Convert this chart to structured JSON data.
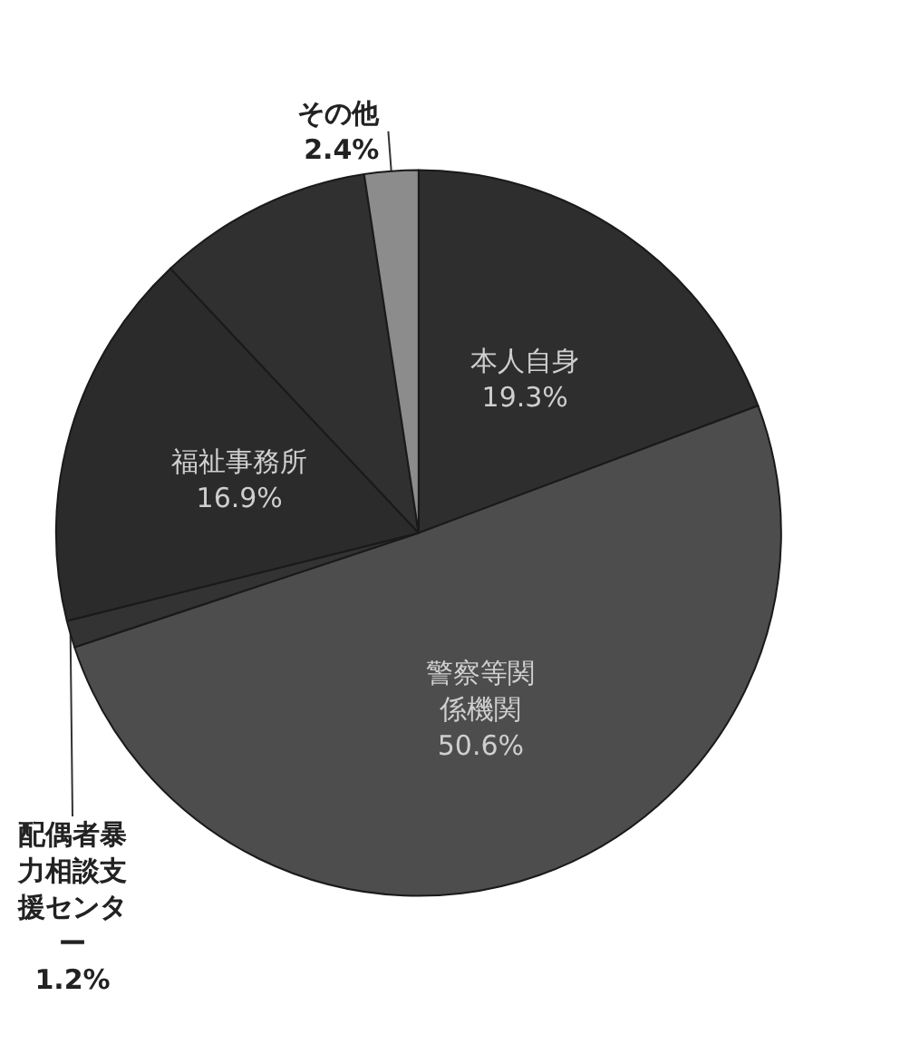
{
  "chart_data": {
    "type": "pie",
    "categories": [
      "本人自身",
      "警察等関係機関",
      "配偶者暴力相談支援センター",
      "福祉事務所",
      null,
      "その他"
    ],
    "values": [
      19.3,
      50.6,
      1.2,
      16.9,
      9.6,
      2.4
    ],
    "colors": [
      "#2e2e2e",
      "#4d4d4d",
      "#333333",
      "#2b2b2b",
      "#303030",
      "#8c8c8c"
    ],
    "value_labels": [
      "19.3%",
      "50.6%",
      "1.2%",
      "16.9%",
      null,
      "2.4%"
    ],
    "legend": false
  }
}
